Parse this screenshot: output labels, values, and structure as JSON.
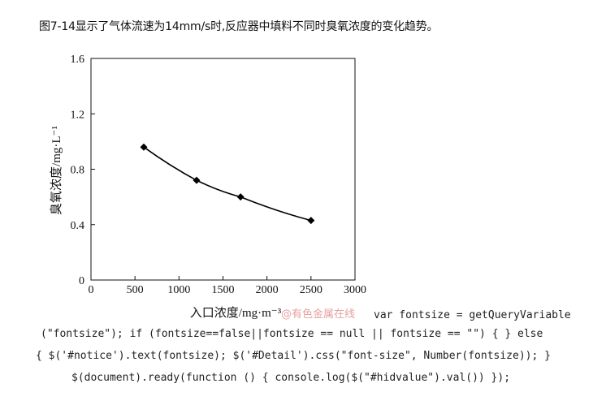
{
  "intro_text": "图7-14显示了气体流速为14mm/s时,反应器中填料不同时臭氧浓度的变化趋势。",
  "watermark": "@有色金属在线",
  "code_lines": [
    "var fontsize = getQueryVariable",
    "(\"fontsize\"); if (fontsize==false||fontsize == null || fontsize == \"\") { } else",
    "{ $('#notice').text(fontsize); $('#Detail').css(\"font-size\", Number(fontsize)); }",
    "$(document).ready(function () { console.log($(\"#hidvalue\").val()) });"
  ],
  "chart_data": {
    "type": "line",
    "xlabel": "入口浓度/mg·m⁻³",
    "ylabel": "臭氧浓度/mg·L⁻¹",
    "xlim": [
      0,
      3000
    ],
    "ylim": [
      0,
      1.6
    ],
    "x_ticks": [
      "0",
      "500",
      "1000",
      "1500",
      "2000",
      "2500",
      "3000"
    ],
    "y_ticks": [
      "0",
      "0.4",
      "0.8",
      "1.2",
      "1.6"
    ],
    "grid": false,
    "series": [
      {
        "x": [
          600,
          1200,
          1700,
          2500
        ],
        "y": [
          0.96,
          0.72,
          0.6,
          0.43
        ],
        "marker": "diamond",
        "color": "#000000"
      }
    ]
  }
}
